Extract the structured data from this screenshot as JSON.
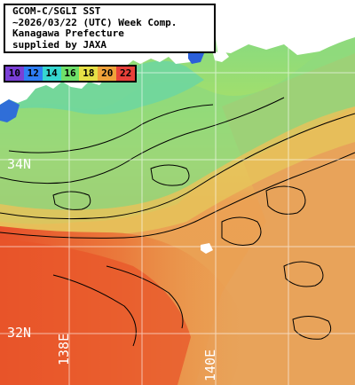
{
  "title": {
    "line1": "GCOM-C/SGLI SST",
    "line2": "~2026/03/22 (UTC) Week Comp.",
    "line3": "Kanagawa Prefecture",
    "line4": "supplied by JAXA"
  },
  "legend": {
    "items": [
      {
        "label": "10",
        "color": "#7a3fd6"
      },
      {
        "label": "12",
        "color": "#2f7ef5"
      },
      {
        "label": "14",
        "color": "#36d6d0"
      },
      {
        "label": "16",
        "color": "#6fe06a"
      },
      {
        "label": "18",
        "color": "#e6e046"
      },
      {
        "label": "20",
        "color": "#f0a23a"
      },
      {
        "label": "22",
        "color": "#e8413a"
      }
    ]
  },
  "grid_labels": {
    "lat_34": "34N",
    "lat_32": "32N",
    "lon_138": "138E",
    "lon_140": "140E"
  },
  "colors": {
    "land": "#ffffff",
    "land_edge": "#2b5fd9",
    "warm_water": "#e8602a",
    "mid_water": "#e9a155",
    "cool_water": "#93dc78",
    "contour": "#000000",
    "grid": "#ffffff"
  }
}
